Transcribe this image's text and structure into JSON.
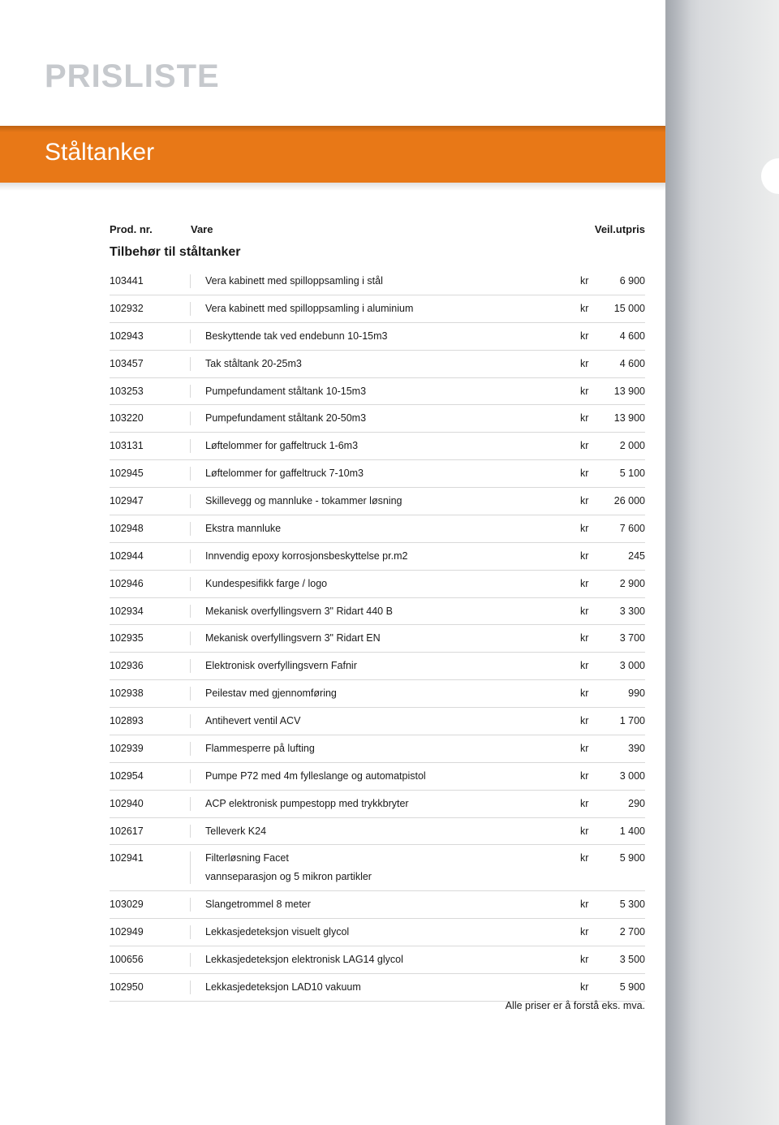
{
  "colors": {
    "page_bg": "#ffffff",
    "title_gray": "#c6c9cd",
    "accent_orange": "#e87817",
    "panel_gradient_from": "#b8bcc2",
    "panel_gradient_to": "#eceded",
    "row_border": "#d9d9d9",
    "text": "#1a1a1a"
  },
  "page_title": "PRISLISTE",
  "section_title": "Ståltanker",
  "columns": {
    "prod": "Prod. nr.",
    "vare": "Vare",
    "price": "Veil.utpris"
  },
  "table_title": "Tilbehør til ståltanker",
  "currency_label": "kr",
  "rows": [
    {
      "prod": "103441",
      "desc": "Vera kabinett med spilloppsamling i stål",
      "price": "6 900"
    },
    {
      "prod": "102932",
      "desc": "Vera kabinett med spilloppsamling i aluminium",
      "price": "15 000"
    },
    {
      "prod": "102943",
      "desc": "Beskyttende tak ved endebunn 10-15m3",
      "price": "4 600"
    },
    {
      "prod": "103457",
      "desc": "Tak ståltank 20-25m3",
      "price": "4 600"
    },
    {
      "prod": "103253",
      "desc": "Pumpefundament ståltank 10-15m3",
      "price": "13 900"
    },
    {
      "prod": "103220",
      "desc": "Pumpefundament ståltank 20-50m3",
      "price": "13 900"
    },
    {
      "prod": "103131",
      "desc": "Løftelommer for gaffeltruck 1-6m3",
      "price": "2 000"
    },
    {
      "prod": "102945",
      "desc": "Løftelommer for gaffeltruck 7-10m3",
      "price": "5 100"
    },
    {
      "prod": "102947",
      "desc": "Skillevegg og mannluke - tokammer løsning",
      "price": "26 000"
    },
    {
      "prod": "102948",
      "desc": "Ekstra mannluke",
      "price": "7 600"
    },
    {
      "prod": "102944",
      "desc": "Innvendig epoxy korrosjonsbeskyttelse pr.m2",
      "price": "245"
    },
    {
      "prod": "102946",
      "desc": "Kundespesifikk farge / logo",
      "price": "2 900"
    },
    {
      "prod": "102934",
      "desc": "Mekanisk overfyllingsvern 3\" Ridart 440 B",
      "price": "3 300"
    },
    {
      "prod": "102935",
      "desc": "Mekanisk overfyllingsvern 3\" Ridart EN",
      "price": "3 700"
    },
    {
      "prod": "102936",
      "desc": "Elektronisk overfyllingsvern Fafnir",
      "price": "3 000"
    },
    {
      "prod": "102938",
      "desc": "Peilestav med gjennomføring",
      "price": "990"
    },
    {
      "prod": "102893",
      "desc": "Antihevert ventil ACV",
      "price": "1 700"
    },
    {
      "prod": "102939",
      "desc": "Flammesperre på lufting",
      "price": "390"
    },
    {
      "prod": "102954",
      "desc": "Pumpe P72 med 4m fylleslange og automatpistol",
      "price": "3 000"
    },
    {
      "prod": "102940",
      "desc": "ACP elektronisk pumpestopp med trykkbryter",
      "price": "290"
    },
    {
      "prod": "102617",
      "desc": "Telleverk K24",
      "price": "1 400"
    },
    {
      "prod": "102941",
      "desc": "Filterløsning Facet",
      "sub": "vannseparasjon og 5 mikron partikler",
      "price": "5 900"
    },
    {
      "prod": "103029",
      "desc": "Slangetrommel 8 meter",
      "price": "5 300"
    },
    {
      "prod": "102949",
      "desc": "Lekkasjedeteksjon visuelt glycol",
      "price": "2 700"
    },
    {
      "prod": "100656",
      "desc": "Lekkasjedeteksjon elektronisk LAG14 glycol",
      "price": "3 500"
    },
    {
      "prod": "102950",
      "desc": "Lekkasjedeteksjon LAD10 vakuum",
      "price": "5 900"
    }
  ],
  "footer_note": "Alle priser er å forstå eks. mva."
}
